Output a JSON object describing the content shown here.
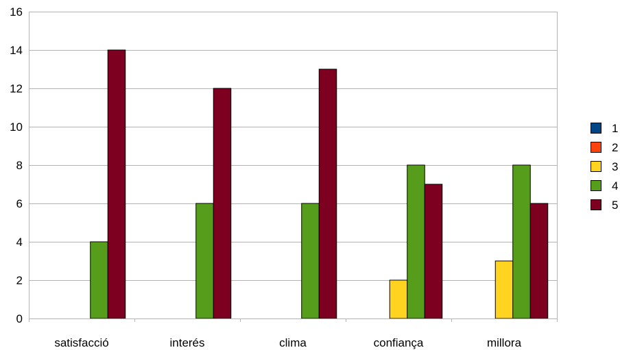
{
  "chart_data": {
    "type": "bar",
    "title": "",
    "xlabel": "",
    "ylabel": "",
    "categories": [
      "satisfacció",
      "interés",
      "clima",
      "confiança",
      "millora"
    ],
    "series": [
      {
        "name": "1",
        "color": "#004586",
        "values": [
          0,
          0,
          0,
          0,
          0
        ]
      },
      {
        "name": "2",
        "color": "#ff420e",
        "values": [
          0,
          0,
          0,
          0,
          0
        ]
      },
      {
        "name": "3",
        "color": "#ffd320",
        "values": [
          0,
          0,
          0,
          2,
          3
        ]
      },
      {
        "name": "4",
        "color": "#579d1c",
        "values": [
          4,
          6,
          6,
          8,
          8
        ]
      },
      {
        "name": "5",
        "color": "#7e0021",
        "values": [
          14,
          12,
          13,
          7,
          6
        ]
      }
    ],
    "ylim": [
      0,
      16
    ],
    "yticks": [
      0,
      2,
      4,
      6,
      8,
      10,
      12,
      14,
      16
    ],
    "grid": true,
    "legend": "right"
  }
}
